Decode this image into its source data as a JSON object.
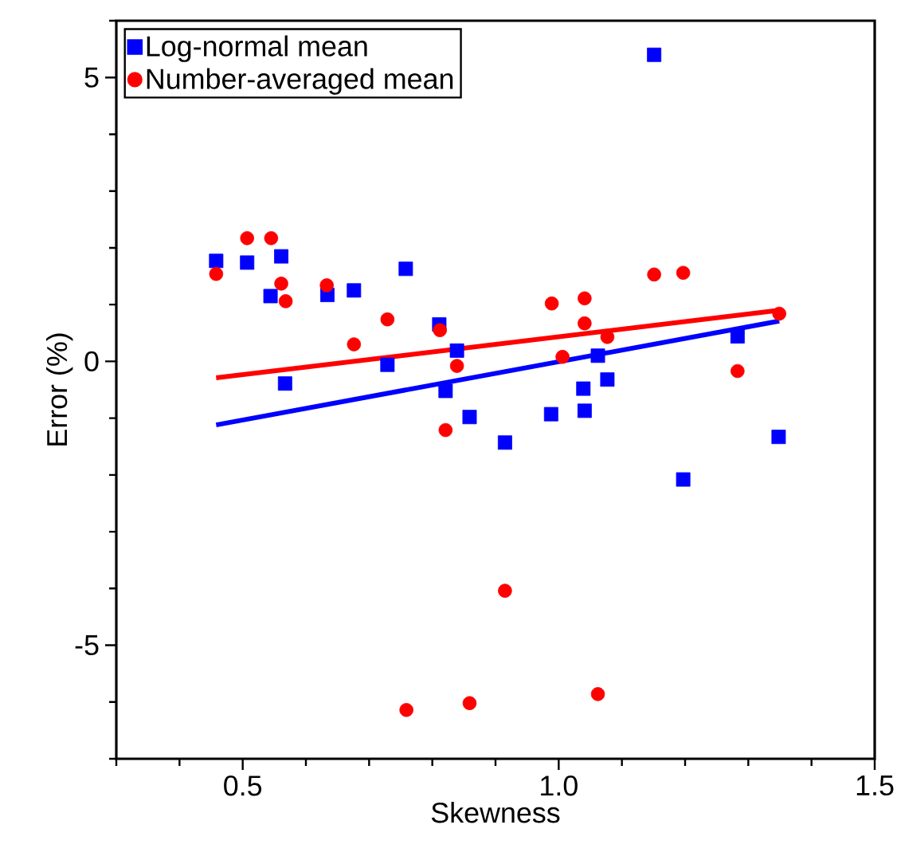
{
  "chart_data": {
    "type": "scatter",
    "xlabel": "Skewness",
    "ylabel": "Error (%)",
    "xlim": [
      0.3,
      1.5
    ],
    "ylim": [
      -7,
      6
    ],
    "xticks": [
      {
        "value": 0.3,
        "label": null
      },
      {
        "value": 0.4,
        "label": null
      },
      {
        "value": 0.5,
        "label": "0.5"
      },
      {
        "value": 0.6,
        "label": null
      },
      {
        "value": 0.7,
        "label": null
      },
      {
        "value": 0.8,
        "label": null
      },
      {
        "value": 0.9,
        "label": null
      },
      {
        "value": 1.0,
        "label": "1.0"
      },
      {
        "value": 1.1,
        "label": null
      },
      {
        "value": 1.2,
        "label": null
      },
      {
        "value": 1.3,
        "label": null
      },
      {
        "value": 1.4,
        "label": null
      },
      {
        "value": 1.5,
        "label": "1.5"
      }
    ],
    "yticks": [
      {
        "value": -7,
        "label": null
      },
      {
        "value": -6,
        "label": null
      },
      -5,
      {
        "value": -4,
        "label": null
      },
      {
        "value": -3,
        "label": null
      },
      {
        "value": -2,
        "label": null
      },
      {
        "value": -1,
        "label": null
      },
      0,
      {
        "value": 1,
        "label": null
      },
      {
        "value": 2,
        "label": null
      },
      {
        "value": 3,
        "label": null
      },
      {
        "value": 4,
        "label": null
      },
      5,
      {
        "value": 6,
        "label": null
      }
    ],
    "grid": false,
    "legend": "top left",
    "series": [
      {
        "name": "Log-normal mean",
        "color": "#0000ff",
        "marker": "square",
        "x": [
          0.458,
          0.507,
          0.561,
          0.544,
          0.634,
          0.676,
          0.758,
          0.811,
          0.839,
          0.729,
          0.567,
          1.151,
          1.062,
          1.283,
          1.039,
          1.077,
          0.821,
          0.859,
          0.988,
          1.041,
          0.915,
          1.197,
          1.348
        ],
        "values": [
          1.77,
          1.74,
          1.85,
          1.15,
          1.17,
          1.25,
          1.63,
          0.65,
          0.19,
          -0.06,
          -0.39,
          5.4,
          0.1,
          0.44,
          -0.48,
          -0.32,
          -0.52,
          -0.98,
          -0.93,
          -0.87,
          -1.43,
          -2.08,
          -1.33
        ]
      },
      {
        "name": "Number-averaged mean",
        "color": "#ff0000",
        "marker": "circle",
        "x": [
          0.458,
          0.507,
          0.545,
          0.561,
          0.568,
          0.633,
          0.676,
          0.729,
          0.812,
          0.839,
          0.989,
          1.041,
          1.041,
          1.077,
          1.006,
          1.151,
          1.197,
          1.349,
          1.283,
          0.821,
          0.915,
          0.759,
          0.859,
          1.062
        ],
        "values": [
          1.54,
          2.17,
          2.17,
          1.37,
          1.06,
          1.34,
          0.3,
          0.74,
          0.55,
          -0.08,
          1.02,
          1.11,
          0.67,
          0.43,
          0.08,
          1.53,
          1.56,
          0.84,
          -0.17,
          -1.21,
          -4.04,
          -6.14,
          -6.02,
          -5.86
        ]
      },
      {
        "type": "line",
        "color": "#0000ff",
        "marker": "none",
        "x": [
          0.458,
          1.349
        ],
        "values": [
          -1.12,
          0.71
        ]
      },
      {
        "type": "line",
        "color": "#ff0000",
        "marker": "none",
        "x": [
          0.458,
          1.349
        ],
        "values": [
          -0.29,
          0.9
        ]
      }
    ]
  }
}
